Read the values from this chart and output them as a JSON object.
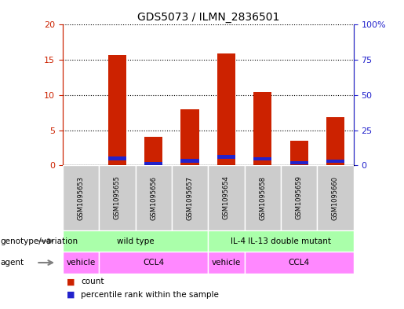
{
  "title": "GDS5073 / ILMN_2836501",
  "samples": [
    "GSM1095653",
    "GSM1095655",
    "GSM1095656",
    "GSM1095657",
    "GSM1095654",
    "GSM1095658",
    "GSM1095659",
    "GSM1095660"
  ],
  "counts": [
    0,
    15.7,
    4.0,
    8.0,
    15.9,
    10.4,
    3.5,
    6.9
  ],
  "percentile_ranks": [
    0,
    4.9,
    1.2,
    3.3,
    6.0,
    4.6,
    1.7,
    3.0
  ],
  "bar_color": "#cc2200",
  "pct_color": "#2222cc",
  "ylim_left": [
    0,
    20
  ],
  "ylim_right": [
    0,
    100
  ],
  "yticks_left": [
    0,
    5,
    10,
    15,
    20
  ],
  "yticks_right": [
    0,
    25,
    50,
    75,
    100
  ],
  "yticklabels_left": [
    "0",
    "5",
    "10",
    "15",
    "20"
  ],
  "yticklabels_right": [
    "0",
    "25",
    "50",
    "75",
    "100%"
  ],
  "genotype_groups": [
    {
      "label": "wild type",
      "start": 0,
      "end": 4
    },
    {
      "label": "IL-4 IL-13 double mutant",
      "start": 4,
      "end": 8
    }
  ],
  "agent_groups": [
    {
      "label": "vehicle",
      "start": 0,
      "end": 1
    },
    {
      "label": "CCL4",
      "start": 1,
      "end": 4
    },
    {
      "label": "vehicle",
      "start": 4,
      "end": 5
    },
    {
      "label": "CCL4",
      "start": 5,
      "end": 8
    }
  ],
  "sample_bg_color": "#cccccc",
  "genotype_bg_color": "#aaffaa",
  "agent_bg_color": "#ff88ff",
  "bar_width": 0.5,
  "left_tick_color": "#cc2200",
  "right_tick_color": "#2222cc"
}
